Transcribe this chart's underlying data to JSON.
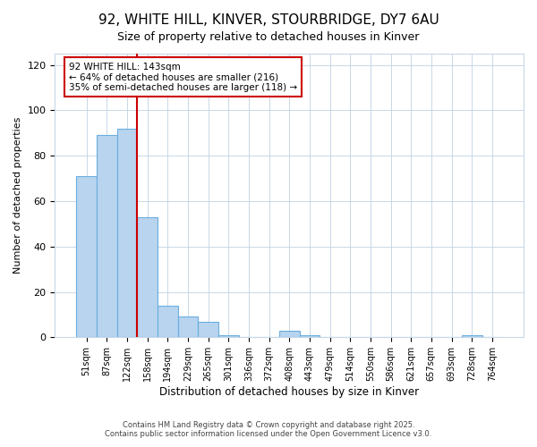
{
  "title1": "92, WHITE HILL, KINVER, STOURBRIDGE, DY7 6AU",
  "title2": "Size of property relative to detached houses in Kinver",
  "xlabel": "Distribution of detached houses by size in Kinver",
  "ylabel": "Number of detached properties",
  "bar_labels": [
    "51sqm",
    "87sqm",
    "122sqm",
    "158sqm",
    "194sqm",
    "229sqm",
    "265sqm",
    "301sqm",
    "336sqm",
    "372sqm",
    "408sqm",
    "443sqm",
    "479sqm",
    "514sqm",
    "550sqm",
    "586sqm",
    "621sqm",
    "657sqm",
    "693sqm",
    "728sqm",
    "764sqm"
  ],
  "bar_values": [
    71,
    89,
    92,
    53,
    14,
    9,
    7,
    1,
    0,
    0,
    3,
    1,
    0,
    0,
    0,
    0,
    0,
    0,
    0,
    1,
    0
  ],
  "bar_color": "#b8d4ee",
  "bar_edgecolor": "#6aaee0",
  "background_color": "#ffffff",
  "grid_color": "#c8d8e8",
  "vline_color": "#cc0000",
  "annotation_text": "92 WHITE HILL: 143sqm\n← 64% of detached houses are smaller (216)\n35% of semi-detached houses are larger (118) →",
  "annotation_box_edgecolor": "#cc0000",
  "ylim": [
    0,
    125
  ],
  "yticks": [
    0,
    20,
    40,
    60,
    80,
    100,
    120
  ],
  "footer1": "Contains HM Land Registry data © Crown copyright and database right 2025.",
  "footer2": "Contains public sector information licensed under the Open Government Licence v3.0.",
  "title_fontsize": 11,
  "subtitle_fontsize": 9
}
